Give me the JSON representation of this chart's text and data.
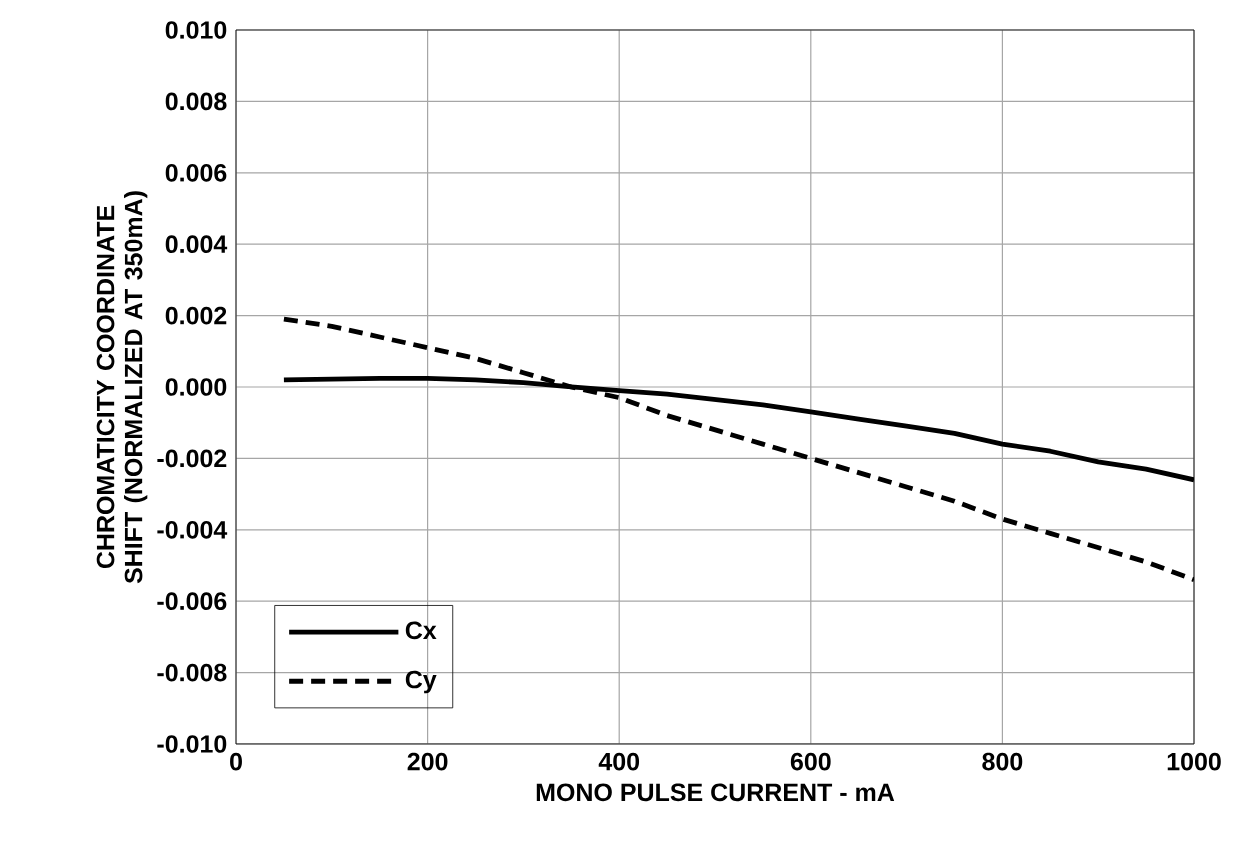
{
  "chart_data": {
    "type": "line",
    "xlabel": "MONO PULSE CURRENT - mA",
    "ylabel": "CHROMATICITY COORDINATE SHIFT (NORMALIZED AT 350mA)",
    "x": [
      50,
      100,
      150,
      200,
      250,
      300,
      350,
      400,
      450,
      500,
      550,
      600,
      650,
      700,
      750,
      800,
      850,
      900,
      950,
      1000
    ],
    "series": [
      {
        "name": "Cx",
        "color": "#000000",
        "line_style": "solid",
        "values": [
          0.0002,
          0.00022,
          0.00024,
          0.00024,
          0.0002,
          0.00012,
          0.0,
          -0.0001,
          -0.0002,
          -0.00035,
          -0.0005,
          -0.0007,
          -0.0009,
          -0.0011,
          -0.0013,
          -0.0016,
          -0.0018,
          -0.0021,
          -0.0023,
          -0.0026
        ]
      },
      {
        "name": "Cy",
        "color": "#000000",
        "line_style": "dashed",
        "values": [
          0.0019,
          0.0017,
          0.0014,
          0.0011,
          0.0008,
          0.0004,
          0.0,
          -0.0003,
          -0.0008,
          -0.0012,
          -0.0016,
          -0.002,
          -0.0024,
          -0.0028,
          -0.0032,
          -0.0037,
          -0.0041,
          -0.0045,
          -0.0049,
          -0.0054
        ]
      }
    ],
    "xlim": [
      0,
      1000
    ],
    "xticks": [
      0,
      200,
      400,
      600,
      800,
      1000
    ],
    "ylim": [
      -0.01,
      0.01
    ],
    "yticks": [
      {
        "value": -0.01,
        "label": "-0.010"
      },
      {
        "value": -0.008,
        "label": "-0.008"
      },
      {
        "value": -0.006,
        "label": "-0.006"
      },
      {
        "value": -0.004,
        "label": "-0.004"
      },
      {
        "value": -0.002,
        "label": "-0.002"
      },
      {
        "value": 0,
        "label": "0.000"
      },
      {
        "value": 0.002,
        "label": "0.002"
      },
      {
        "value": 0.004,
        "label": "0.004"
      },
      {
        "value": 0.006,
        "label": "0.006"
      },
      {
        "value": 0.008,
        "label": "0.008"
      },
      {
        "value": 0.01,
        "label": "0.010"
      }
    ],
    "grid": true,
    "legend": "bottom left",
    "marker": "none"
  }
}
